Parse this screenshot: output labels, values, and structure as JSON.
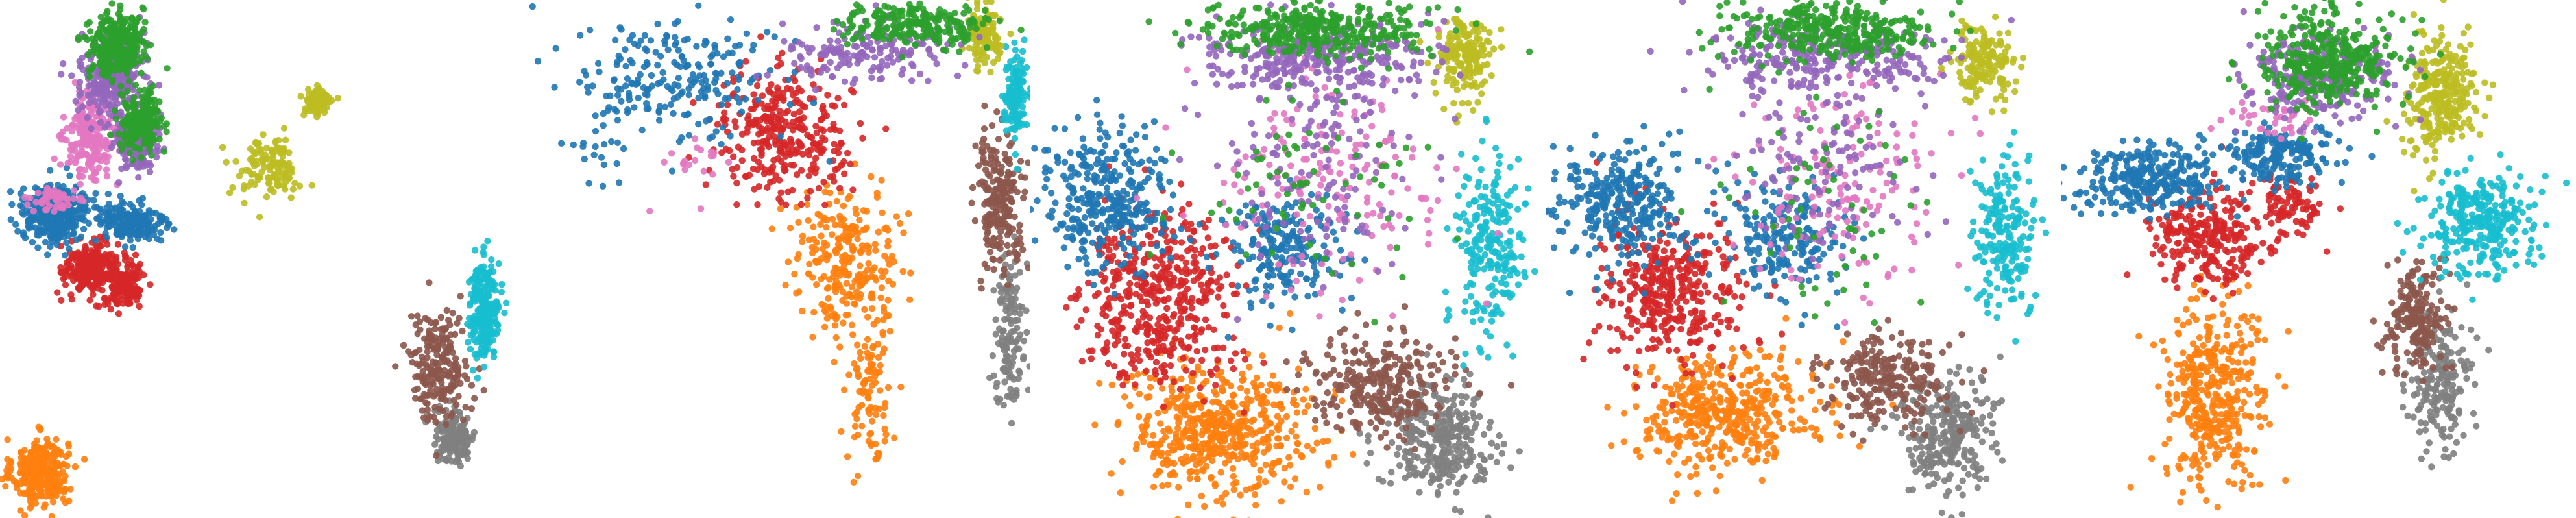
{
  "colors": {
    "blue": "#1f77b4",
    "orange": "#ff7f0e",
    "green": "#2ca02c",
    "red": "#d62728",
    "purple": "#9467bd",
    "brown": "#8c564b",
    "pink": "#e377c2",
    "gray": "#7f7f7f",
    "olive": "#bcbd22",
    "cyan": "#17becf"
  },
  "chart_data": [
    {
      "type": "scatter",
      "title": "",
      "xlabel": "",
      "ylabel": "",
      "axes": "off",
      "grid": false,
      "legend": "none",
      "xlim": [
        0,
        10
      ],
      "ylim": [
        0,
        10
      ],
      "clusters": [
        {
          "color": "green",
          "blobs": [
            [
              2.2,
              9.2,
              0.45,
              0.55,
              300
            ],
            [
              2.7,
              7.7,
              0.35,
              0.45,
              200
            ]
          ]
        },
        {
          "color": "purple",
          "blobs": [
            [
              2.1,
              8.6,
              0.5,
              0.7,
              320
            ],
            [
              2.6,
              7.3,
              0.35,
              0.45,
              160
            ]
          ]
        },
        {
          "color": "pink",
          "blobs": [
            [
              1.7,
              7.4,
              0.4,
              0.7,
              220
            ],
            [
              1.0,
              6.2,
              0.4,
              0.2,
              50
            ]
          ]
        },
        {
          "color": "blue",
          "blobs": [
            [
              1.0,
              5.9,
              0.55,
              0.45,
              380
            ],
            [
              2.5,
              5.7,
              0.6,
              0.35,
              180
            ]
          ]
        },
        {
          "color": "red",
          "blobs": [
            [
              1.7,
              4.8,
              0.45,
              0.45,
              250
            ],
            [
              2.4,
              4.5,
              0.3,
              0.4,
              130
            ]
          ]
        },
        {
          "color": "olive",
          "blobs": [
            [
              6.2,
              8.1,
              0.25,
              0.25,
              90
            ],
            [
              5.2,
              6.8,
              0.55,
              0.5,
              130
            ]
          ]
        },
        {
          "color": "cyan",
          "blobs": [
            [
              9.5,
              4.0,
              0.25,
              0.8,
              240
            ]
          ]
        },
        {
          "color": "brown",
          "blobs": [
            [
              8.6,
              2.9,
              0.5,
              0.9,
              210
            ]
          ]
        },
        {
          "color": "gray",
          "blobs": [
            [
              8.9,
              1.5,
              0.35,
              0.45,
              160
            ]
          ]
        },
        {
          "color": "orange",
          "blobs": [
            [
              0.7,
              0.8,
              0.45,
              0.55,
              320
            ]
          ]
        }
      ]
    },
    {
      "type": "scatter",
      "title": "",
      "xlabel": "",
      "ylabel": "",
      "axes": "off",
      "grid": false,
      "legend": "none",
      "xlim": [
        0,
        10
      ],
      "ylim": [
        0,
        10
      ],
      "clusters": [
        {
          "color": "blue",
          "blobs": [
            [
              3.1,
              8.5,
              1.6,
              1.0,
              220
            ],
            [
              1.5,
              7.2,
              0.8,
              0.7,
              20
            ]
          ]
        },
        {
          "color": "red",
          "blobs": [
            [
              5.2,
              7.5,
              1.1,
              1.0,
              320
            ]
          ]
        },
        {
          "color": "orange",
          "blobs": [
            [
              6.5,
              5.0,
              0.9,
              1.2,
              260
            ],
            [
              6.9,
              2.4,
              0.4,
              1.1,
              90
            ]
          ]
        },
        {
          "color": "green",
          "blobs": [
            [
              7.8,
              9.6,
              1.2,
              0.35,
              220
            ]
          ]
        },
        {
          "color": "purple",
          "blobs": [
            [
              6.9,
              9.1,
              1.4,
              0.5,
              170
            ]
          ]
        },
        {
          "color": "pink",
          "blobs": [
            [
              3.5,
              6.8,
              0.6,
              0.6,
              20
            ]
          ]
        },
        {
          "color": "olive",
          "blobs": [
            [
              9.2,
              9.4,
              0.3,
              0.5,
              120
            ]
          ]
        },
        {
          "color": "cyan",
          "blobs": [
            [
              9.8,
              8.2,
              0.2,
              0.7,
              130
            ]
          ]
        },
        {
          "color": "brown",
          "blobs": [
            [
              9.5,
              6.2,
              0.4,
              1.1,
              220
            ]
          ]
        },
        {
          "color": "gray",
          "blobs": [
            [
              9.7,
              3.6,
              0.25,
              1.3,
              140
            ]
          ]
        }
      ]
    },
    {
      "type": "scatter",
      "title": "",
      "xlabel": "",
      "ylabel": "",
      "axes": "off",
      "grid": false,
      "legend": "none",
      "xlim": [
        0,
        10
      ],
      "ylim": [
        0,
        10
      ],
      "clusters": [
        {
          "color": "blue",
          "blobs": [
            [
              1.4,
              6.2,
              1.0,
              1.1,
              330
            ],
            [
              4.9,
              5.2,
              1.0,
              0.9,
              200
            ]
          ]
        },
        {
          "color": "red",
          "blobs": [
            [
              2.4,
              4.3,
              1.3,
              1.4,
              460
            ]
          ]
        },
        {
          "color": "orange",
          "blobs": [
            [
              3.6,
              1.6,
              1.6,
              1.1,
              520
            ]
          ]
        },
        {
          "color": "brown",
          "blobs": [
            [
              6.8,
              2.5,
              1.2,
              0.8,
              280
            ]
          ]
        },
        {
          "color": "gray",
          "blobs": [
            [
              8.0,
              1.4,
              0.9,
              0.9,
              300
            ]
          ]
        },
        {
          "color": "cyan",
          "blobs": [
            [
              9.0,
              5.2,
              0.6,
              1.4,
              220
            ]
          ]
        },
        {
          "color": "olive",
          "blobs": [
            [
              8.5,
              8.9,
              0.5,
              0.7,
              180
            ]
          ]
        },
        {
          "color": "green",
          "blobs": [
            [
              5.5,
              9.5,
              1.9,
              0.45,
              360
            ],
            [
              5.2,
              6.3,
              1.8,
              1.8,
              70
            ]
          ]
        },
        {
          "color": "purple",
          "blobs": [
            [
              5.4,
              9.0,
              2.0,
              0.6,
              300
            ],
            [
              5.5,
              6.8,
              1.8,
              1.7,
              140
            ]
          ]
        },
        {
          "color": "pink",
          "blobs": [
            [
              5.8,
              6.6,
              1.8,
              1.9,
              180
            ]
          ]
        }
      ]
    },
    {
      "type": "scatter",
      "title": "",
      "xlabel": "",
      "ylabel": "",
      "axes": "off",
      "grid": false,
      "legend": "none",
      "xlim": [
        0,
        10
      ],
      "ylim": [
        0,
        10
      ],
      "clusters": [
        {
          "color": "blue",
          "blobs": [
            [
              1.4,
              6.0,
              1.1,
              1.0,
              300
            ],
            [
              4.6,
              5.4,
              1.0,
              0.9,
              200
            ]
          ]
        },
        {
          "color": "red",
          "blobs": [
            [
              2.4,
              4.4,
              1.2,
              1.2,
              380
            ]
          ]
        },
        {
          "color": "orange",
          "blobs": [
            [
              3.4,
              2.0,
              1.5,
              1.0,
              420
            ]
          ]
        },
        {
          "color": "brown",
          "blobs": [
            [
              6.6,
              2.6,
              1.0,
              0.7,
              240
            ]
          ]
        },
        {
          "color": "gray",
          "blobs": [
            [
              7.8,
              1.6,
              0.8,
              1.0,
              280
            ]
          ]
        },
        {
          "color": "cyan",
          "blobs": [
            [
              9.0,
              5.4,
              0.5,
              1.3,
              200
            ]
          ]
        },
        {
          "color": "olive",
          "blobs": [
            [
              8.6,
              8.9,
              0.5,
              0.7,
              160
            ]
          ]
        },
        {
          "color": "green",
          "blobs": [
            [
              5.6,
              9.5,
              1.8,
              0.45,
              320
            ],
            [
              5.2,
              6.2,
              1.7,
              1.7,
              60
            ]
          ]
        },
        {
          "color": "purple",
          "blobs": [
            [
              5.4,
              9.0,
              1.9,
              0.6,
              280
            ],
            [
              5.4,
              6.8,
              1.7,
              1.6,
              120
            ]
          ]
        },
        {
          "color": "pink",
          "blobs": [
            [
              5.8,
              6.5,
              1.7,
              1.8,
              160
            ]
          ]
        }
      ]
    },
    {
      "type": "scatter",
      "title": "",
      "xlabel": "",
      "ylabel": "",
      "axes": "off",
      "grid": false,
      "legend": "none",
      "xlim": [
        0,
        10
      ],
      "ylim": [
        0,
        10
      ],
      "clusters": [
        {
          "color": "green",
          "blobs": [
            [
              5.2,
              8.9,
              1.1,
              0.8,
              380
            ]
          ]
        },
        {
          "color": "purple",
          "blobs": [
            [
              4.9,
              8.6,
              1.2,
              0.7,
              260
            ]
          ]
        },
        {
          "color": "pink",
          "blobs": [
            [
              4.2,
              7.8,
              0.8,
              0.4,
              40
            ]
          ]
        },
        {
          "color": "olive",
          "blobs": [
            [
              7.4,
              8.2,
              0.6,
              1.0,
              280
            ]
          ]
        },
        {
          "color": "blue",
          "blobs": [
            [
              1.6,
              6.6,
              1.1,
              0.6,
              280
            ],
            [
              4.2,
              7.0,
              1.0,
              0.5,
              180
            ]
          ]
        },
        {
          "color": "red",
          "blobs": [
            [
              2.8,
              5.4,
              0.9,
              0.8,
              260
            ],
            [
              4.4,
              6.0,
              0.6,
              0.5,
              90
            ]
          ]
        },
        {
          "color": "cyan",
          "blobs": [
            [
              8.2,
              5.7,
              0.9,
              0.8,
              300
            ]
          ]
        },
        {
          "color": "brown",
          "blobs": [
            [
              6.9,
              3.8,
              0.5,
              0.9,
              190
            ]
          ]
        },
        {
          "color": "gray",
          "blobs": [
            [
              7.4,
              2.6,
              0.5,
              1.1,
              200
            ]
          ]
        },
        {
          "color": "orange",
          "blobs": [
            [
              2.9,
              2.4,
              0.8,
              1.5,
              380
            ]
          ]
        }
      ]
    }
  ]
}
